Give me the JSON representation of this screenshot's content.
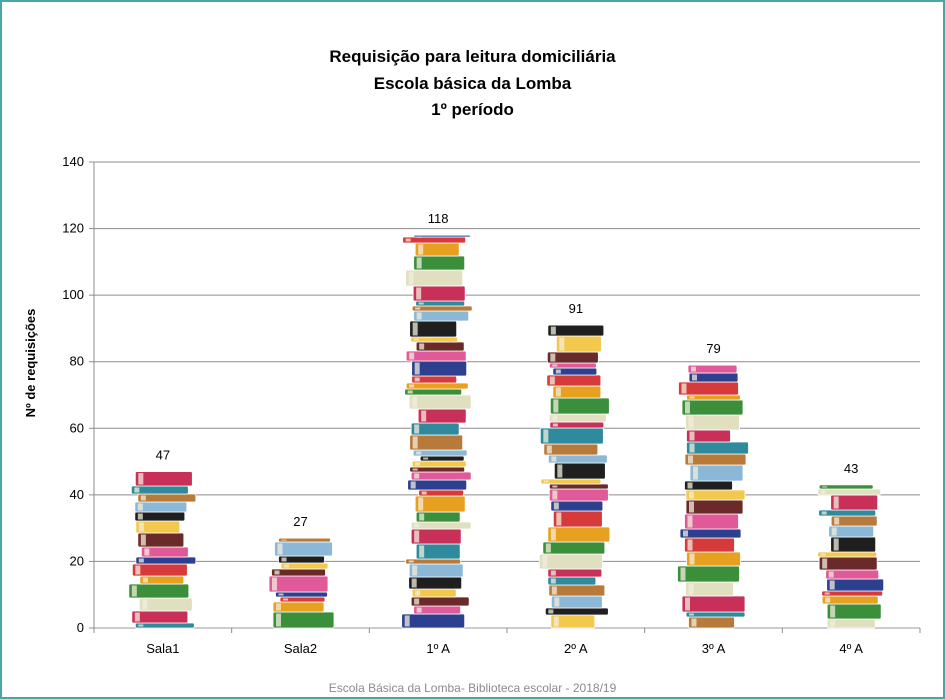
{
  "chart_data": {
    "type": "bar",
    "title_lines": [
      "Requisição para leitura domiciliária",
      "Escola básica da Lomba",
      "1º período"
    ],
    "categories": [
      "Sala1",
      "Sala2",
      "1º A",
      "2º A",
      "3º A",
      "4º A"
    ],
    "values": [
      47,
      27,
      118,
      91,
      79,
      43
    ],
    "data_labels": [
      "47",
      "27",
      "118",
      "91",
      "79",
      "43"
    ],
    "ylabel": "Nº de requisições",
    "xlabel": "",
    "ylim": [
      0,
      140
    ],
    "yticks": [
      "0",
      "20",
      "40",
      "60",
      "80",
      "100",
      "120",
      "140"
    ],
    "grid": true,
    "bar_style": "stacked-books",
    "book_colors": [
      "#2e8a9c",
      "#c8305a",
      "#e0e0c0",
      "#3b8f3b",
      "#e8a020",
      "#d63a3a",
      "#2d3f8f",
      "#e05a9a",
      "#6b2a2a",
      "#f2c94c",
      "#1f1f1f",
      "#8ab8d6",
      "#b87a3a"
    ]
  },
  "footer": "Escola Básica da Lomba- Biblioteca escolar - 2018/19"
}
